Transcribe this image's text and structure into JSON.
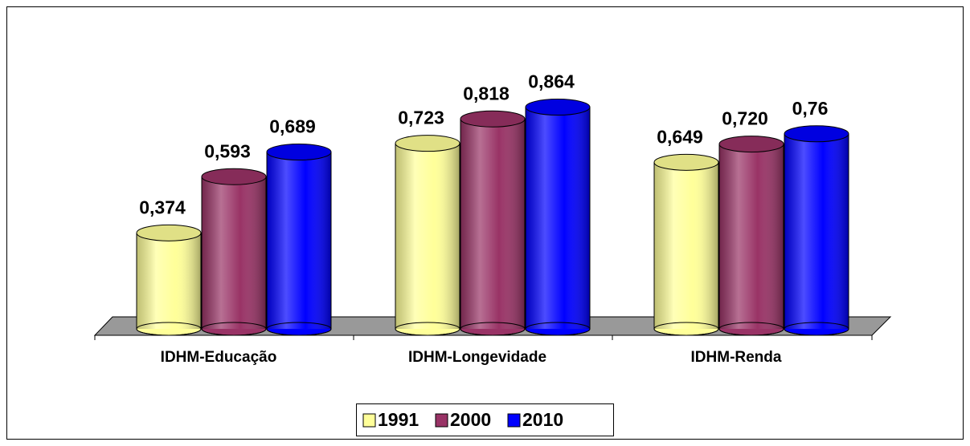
{
  "chart_data": {
    "type": "bar",
    "categories": [
      "IDHM-Educação",
      "IDHM-Longevidade",
      "IDHM-Renda"
    ],
    "series": [
      {
        "name": "1991",
        "color": "#ffff99",
        "values": [
          0.374,
          0.723,
          0.649
        ],
        "value_labels": [
          "0,374",
          "0,723",
          "0,649"
        ]
      },
      {
        "name": "2000",
        "color": "#993366",
        "values": [
          0.593,
          0.818,
          0.72
        ],
        "value_labels": [
          "0,593",
          "0,818",
          "0,720"
        ]
      },
      {
        "name": "2010",
        "color": "#0000ff",
        "values": [
          0.689,
          0.864,
          0.76
        ],
        "value_labels": [
          "0,689",
          "0,864",
          "0,76"
        ]
      }
    ],
    "ylim": [
      0,
      1
    ],
    "legend": "bottom"
  }
}
